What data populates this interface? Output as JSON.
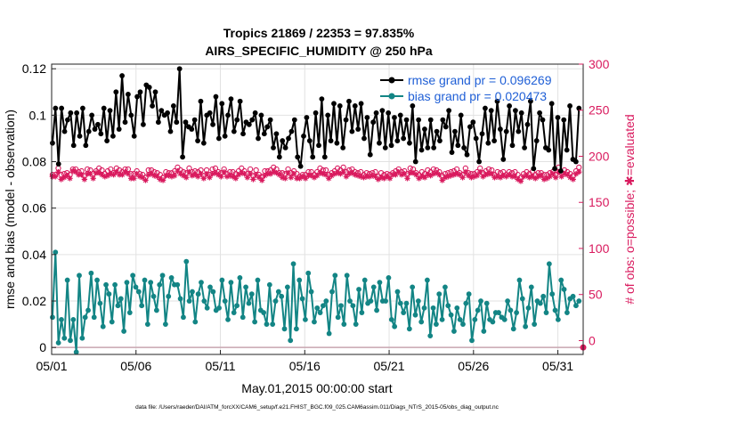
{
  "chart_data": {
    "type": "line",
    "title": "Tropics 21869 / 22353 = 97.835%",
    "subtitle": "AIRS_SPECIFIC_HUMIDITY @ 250 hPa",
    "xlabel": "May.01,2015 00:00:00 start",
    "ylabel": "rmse and bias (model - observation)",
    "ylabel_right": "# of obs: o=possible; ✱=evaluated",
    "footnote": "data file: /Users/raeder/DAI/ATM_forcXX/CAM6_setup/f.e21.FHIST_BGC.f09_025.CAM6assim.011/Diags_NTrS_2015-05/obs_diag_output.nc",
    "x_ticks": [
      "05/01",
      "05/06",
      "05/11",
      "05/16",
      "05/21",
      "05/26",
      "05/31"
    ],
    "xlim": [
      0,
      31.5
    ],
    "ylim": [
      -0.003,
      0.122
    ],
    "y_ticks": [
      "0",
      "0.02",
      "0.04",
      "0.06",
      "0.08",
      "0.1",
      "0.12"
    ],
    "y2lim": [
      -15,
      300
    ],
    "y2_ticks": [
      "0",
      "50",
      "100",
      "150",
      "200",
      "250",
      "300"
    ],
    "grid": true,
    "legend_position": "top-right",
    "colors": {
      "rmse": "#000000",
      "bias": "#138585",
      "obs": "#d91a5e",
      "zero_line": "#c9a6b0",
      "legend_text": "#1f5fd6"
    },
    "legend": [
      {
        "label": "rmse grand pr = 0.096269"
      },
      {
        "label": "bias grand pr = 0.020473"
      }
    ],
    "series": [
      {
        "name": "rmse",
        "axis": "left",
        "values": [
          0.088,
          0.103,
          0.079,
          0.103,
          0.093,
          0.098,
          0.101,
          0.087,
          0.101,
          0.091,
          0.103,
          0.087,
          0.093,
          0.1,
          0.094,
          0.096,
          0.092,
          0.103,
          0.089,
          0.102,
          0.091,
          0.11,
          0.094,
          0.117,
          0.097,
          0.109,
          0.1,
          0.091,
          0.108,
          0.11,
          0.096,
          0.113,
          0.112,
          0.104,
          0.11,
          0.097,
          0.102,
          0.1,
          0.101,
          0.093,
          0.104,
          0.097,
          0.12,
          0.082,
          0.097,
          0.095,
          0.094,
          0.098,
          0.089,
          0.106,
          0.088,
          0.1,
          0.101,
          0.096,
          0.108,
          0.09,
          0.105,
          0.091,
          0.1,
          0.107,
          0.093,
          0.098,
          0.106,
          0.092,
          0.097,
          0.096,
          0.098,
          0.101,
          0.09,
          0.1,
          0.092,
          0.095,
          0.098,
          0.086,
          0.092,
          0.082,
          0.089,
          0.086,
          0.09,
          0.093,
          0.098,
          0.082,
          0.078,
          0.091,
          0.099,
          0.089,
          0.082,
          0.101,
          0.087,
          0.107,
          0.082,
          0.1,
          0.089,
          0.105,
          0.088,
          0.104,
          0.086,
          0.098,
          0.106,
          0.093,
          0.104,
          0.094,
          0.105,
          0.09,
          0.099,
          0.083,
          0.097,
          0.101,
          0.088,
          0.102,
          0.086,
          0.101,
          0.087,
          0.099,
          0.089,
          0.1,
          0.09,
          0.098,
          0.088,
          0.104,
          0.08,
          0.098,
          0.085,
          0.094,
          0.086,
          0.098,
          0.086,
          0.093,
          0.089,
          0.098,
          0.095,
          0.102,
          0.084,
          0.093,
          0.087,
          0.1,
          0.086,
          0.083,
          0.095,
          0.097,
          0.09,
          0.08,
          0.092,
          0.103,
          0.088,
          0.102,
          0.089,
          0.106,
          0.094,
          0.081,
          0.093,
          0.104,
          0.087,
          0.102,
          0.093,
          0.101,
          0.086,
          0.096,
          0.106,
          0.077,
          0.089,
          0.101,
          0.098,
          0.086,
          0.085,
          0.105,
          0.077,
          0.099,
          0.076,
          0.098,
          0.085,
          0.104,
          0.081,
          0.08,
          0.103
        ]
      },
      {
        "name": "bias",
        "axis": "left",
        "values": [
          0.013,
          0.041,
          0.002,
          0.012,
          0.004,
          0.029,
          0.003,
          0.012,
          -0.002,
          0.031,
          0.004,
          0.013,
          0.016,
          0.032,
          0.013,
          0.029,
          0.019,
          0.009,
          0.027,
          0.023,
          0.011,
          0.027,
          0.018,
          0.021,
          0.007,
          0.028,
          0.015,
          0.031,
          0.026,
          0.024,
          0.018,
          0.029,
          0.01,
          0.028,
          0.022,
          0.016,
          0.027,
          0.031,
          0.01,
          0.022,
          0.03,
          0.027,
          0.027,
          0.021,
          0.013,
          0.037,
          0.02,
          0.024,
          0.011,
          0.023,
          0.028,
          0.02,
          0.017,
          0.026,
          0.024,
          0.016,
          0.017,
          0.029,
          0.02,
          0.012,
          0.028,
          0.015,
          0.018,
          0.03,
          0.013,
          0.026,
          0.019,
          0.023,
          0.011,
          0.029,
          0.016,
          0.015,
          0.01,
          0.027,
          0.01,
          0.02,
          0.024,
          0.022,
          0.008,
          0.026,
          0.003,
          0.036,
          0.008,
          0.029,
          0.021,
          0.012,
          0.032,
          0.024,
          0.011,
          0.017,
          0.015,
          0.018,
          0.02,
          0.006,
          0.024,
          0.031,
          0.013,
          0.018,
          0.01,
          0.031,
          0.02,
          0.018,
          0.01,
          0.025,
          0.015,
          0.029,
          0.019,
          0.02,
          0.026,
          0.016,
          0.028,
          0.02,
          0.02,
          0.03,
          0.012,
          0.009,
          0.024,
          0.019,
          0.015,
          0.019,
          0.008,
          0.026,
          0.014,
          0.02,
          0.011,
          0.017,
          0.029,
          0.005,
          0.017,
          0.01,
          0.023,
          0.012,
          0.026,
          0.018,
          0.014,
          0.007,
          0.017,
          0.012,
          0.01,
          0.019,
          0.023,
          0.003,
          0.012,
          0.016,
          0.02,
          0.007,
          0.019,
          0.012,
          0.011,
          0.015,
          0.015,
          0.013,
          0.012,
          0.02,
          0.016,
          0.008,
          0.015,
          0.029,
          0.021,
          0.009,
          0.017,
          0.026,
          0.01,
          0.02,
          0.019,
          0.022,
          0.015,
          0.036,
          0.023,
          0.016,
          0.012,
          0.029,
          0.025,
          0.015,
          0.021,
          0.022,
          0.018,
          0.02
        ]
      },
      {
        "name": "obs possible",
        "axis": "right",
        "marker": "o",
        "values": [
          180,
          180,
          187,
          180,
          181,
          182,
          180,
          186,
          186,
          183,
          184,
          179,
          186,
          185,
          181,
          184,
          187,
          185,
          181,
          184,
          186,
          182,
          187,
          185,
          183,
          186,
          186,
          181,
          181,
          184,
          181,
          180,
          177,
          185,
          185,
          183,
          182,
          180,
          177,
          183,
          182,
          182,
          184,
          188,
          185,
          183,
          182,
          187,
          183,
          184,
          183,
          185,
          179,
          185,
          180,
          186,
          187,
          183,
          182,
          186,
          181,
          183,
          183,
          181,
          184,
          187,
          184,
          181,
          186,
          179,
          185,
          180,
          178,
          184,
          184,
          185,
          188,
          186,
          182,
          182,
          181,
          186,
          182,
          184,
          181,
          178,
          180,
          180,
          183,
          183,
          180,
          183,
          187,
          185,
          185,
          180,
          182,
          184,
          187,
          185,
          188,
          183,
          185,
          186,
          183,
          182,
          183,
          180,
          182,
          181,
          182,
          183,
          178,
          182,
          180,
          181,
          180,
          182,
          184,
          186,
          183,
          184,
          181,
          187,
          186,
          182,
          180,
          183,
          181,
          185,
          183,
          186,
          185,
          183,
          179,
          181,
          182,
          183,
          184,
          186,
          182,
          180,
          187,
          182,
          181,
          181,
          183,
          187,
          182,
          184,
          186,
          185,
          180,
          183,
          182,
          183,
          180,
          183,
          182,
          183,
          180,
          177,
          181,
          183,
          181,
          183,
          180,
          182,
          182,
          180,
          180,
          182,
          183,
          180,
          188,
          182,
          185,
          183,
          181,
          179,
          184,
          188
        ]
      },
      {
        "name": "obs evaluated",
        "axis": "right",
        "marker": "*",
        "values": [
          178,
          178,
          183,
          175,
          177,
          179,
          176,
          184,
          183,
          180,
          180,
          175,
          181,
          181,
          176,
          182,
          182,
          180,
          178,
          179,
          181,
          180,
          183,
          180,
          180,
          183,
          181,
          176,
          176,
          181,
          178,
          177,
          174,
          180,
          181,
          179,
          178,
          175,
          174,
          179,
          179,
          178,
          179,
          184,
          181,
          179,
          177,
          183,
          179,
          180,
          178,
          181,
          176,
          181,
          177,
          181,
          182,
          180,
          178,
          183,
          178,
          179,
          178,
          176,
          180,
          182,
          181,
          177,
          181,
          175,
          180,
          177,
          174,
          179,
          181,
          181,
          183,
          182,
          180,
          177,
          176,
          182,
          177,
          181,
          176,
          176,
          178,
          176,
          179,
          179,
          177,
          179,
          182,
          181,
          180,
          176,
          179,
          181,
          182,
          181,
          183,
          178,
          181,
          182,
          180,
          179,
          178,
          177,
          178,
          178,
          179,
          178,
          175,
          177,
          176,
          178,
          176,
          180,
          180,
          183,
          180,
          181,
          176,
          182,
          182,
          180,
          176,
          178,
          177,
          180,
          179,
          181,
          182,
          180,
          174,
          177,
          178,
          179,
          180,
          181,
          180,
          177,
          183,
          179,
          177,
          178,
          179,
          183,
          178,
          180,
          181,
          181,
          177,
          178,
          177,
          179,
          178,
          180,
          178,
          178,
          175,
          173,
          178,
          179,
          177,
          178,
          176,
          178,
          179,
          175,
          176,
          178,
          181,
          177,
          183,
          178,
          181,
          180,
          177,
          175,
          181,
          183
        ]
      }
    ]
  }
}
